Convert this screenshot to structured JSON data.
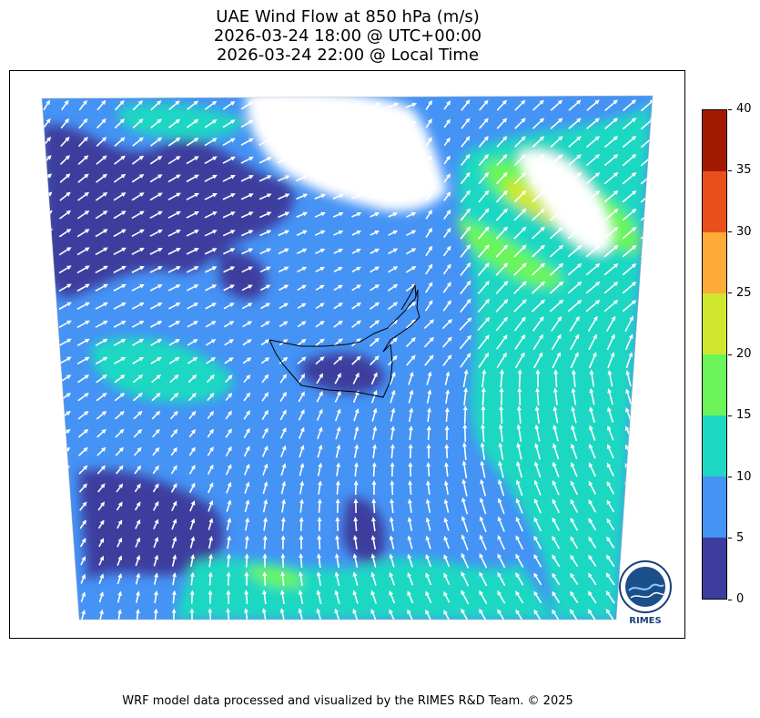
{
  "title": {
    "line1": "UAE Wind Flow at 850 hPa (m/s)",
    "line2": "2026-03-24 18:00 @ UTC+00:00",
    "line3": "2026-03-24 22:00 @ Local Time"
  },
  "colorbar": {
    "levels": [
      "0",
      "5",
      "10",
      "15",
      "20",
      "25",
      "30",
      "35",
      "40"
    ],
    "colors": [
      "#3d3d9e",
      "#4593f5",
      "#1fd8c2",
      "#6bf55a",
      "#cfe82e",
      "#fdac37",
      "#e8511b",
      "#a31a03"
    ]
  },
  "logo": {
    "text": "RIMES",
    "icon": "rimes-globe-logo"
  },
  "footer": "WRF model data processed and visualized by the RIMES R&D Team. © 2025",
  "map": {
    "domain_colors": {
      "background": "#4593f5",
      "arrow": "#ffffff",
      "no_data": "#ffffff",
      "border": "#000000"
    },
    "wind_direction": "predominantly northeast-flowing (south-westerly) with stronger flow in north-east"
  }
}
